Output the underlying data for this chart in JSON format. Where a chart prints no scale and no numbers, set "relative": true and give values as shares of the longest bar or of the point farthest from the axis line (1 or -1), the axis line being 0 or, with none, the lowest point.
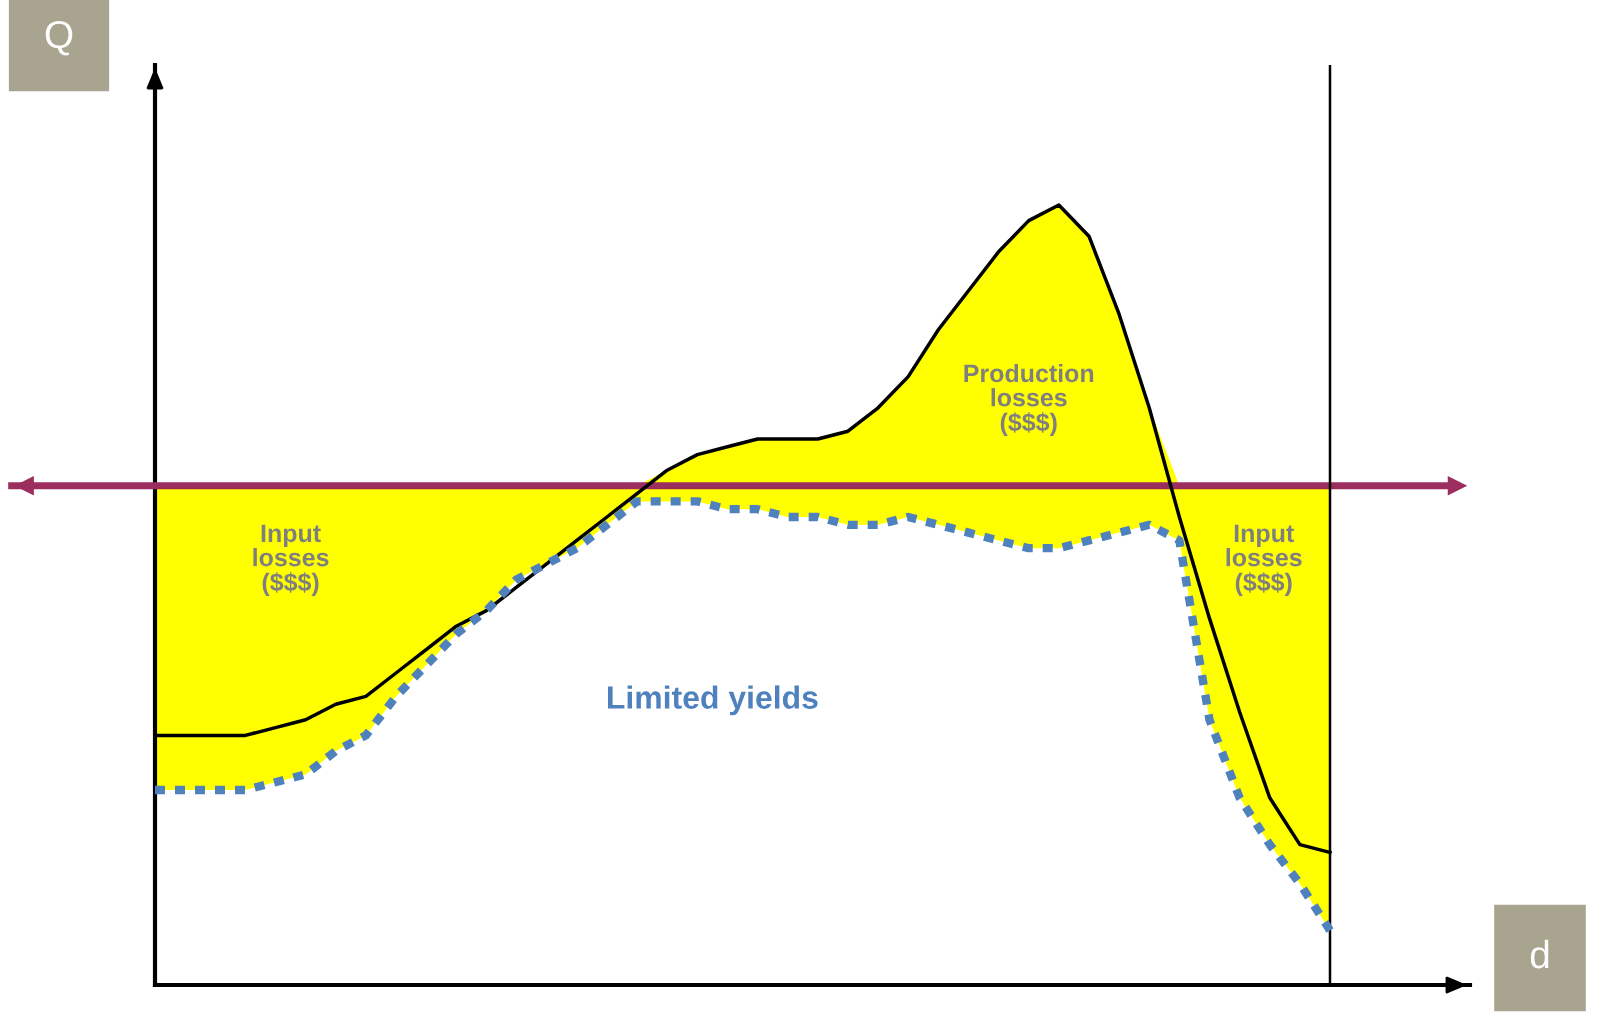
{
  "chart_data": {
    "type": "line",
    "relative": true,
    "xlabel": "d",
    "ylabel": "Q",
    "grid": false,
    "legend": false,
    "marker": "none",
    "categories": [
      null,
      null,
      null,
      null,
      null,
      null,
      null,
      null,
      null,
      null,
      null,
      null,
      null,
      null,
      null,
      null,
      null,
      null,
      null,
      null,
      null,
      null,
      null,
      null,
      null,
      null,
      null,
      null,
      null,
      null,
      null,
      null,
      null,
      null,
      null,
      null,
      null,
      null,
      null,
      null
    ],
    "series": [
      {
        "color": "#000000",
        "line_style": "solid",
        "values": [
          0.32,
          0.32,
          0.32,
          0.32,
          0.33,
          0.34,
          0.36,
          0.37,
          0.4,
          0.43,
          0.46,
          0.48,
          0.51,
          0.54,
          0.57,
          0.6,
          0.63,
          0.66,
          0.68,
          0.69,
          0.7,
          0.7,
          0.7,
          0.71,
          0.74,
          0.78,
          0.84,
          0.89,
          0.94,
          0.98,
          1.0,
          0.96,
          0.86,
          0.74,
          0.6,
          0.47,
          0.35,
          0.24,
          0.18,
          0.17
        ]
      },
      {
        "color": "#4f81bd",
        "line_style": "dotted",
        "values": [
          0.25,
          0.25,
          0.25,
          0.25,
          0.26,
          0.27,
          0.3,
          0.32,
          0.37,
          0.41,
          0.45,
          0.48,
          0.52,
          0.54,
          0.56,
          0.59,
          0.62,
          0.62,
          0.62,
          0.61,
          0.61,
          0.6,
          0.6,
          0.59,
          0.59,
          0.6,
          0.59,
          0.58,
          0.57,
          0.56,
          0.56,
          0.57,
          0.58,
          0.59,
          0.57,
          0.34,
          0.24,
          0.18,
          0.13,
          0.07
        ],
        "lower": [
          0.25,
          0.25,
          0.25,
          0.25,
          0.26,
          0.27,
          0.3,
          0.32,
          0.37,
          0.41,
          0.45,
          0.48,
          0.52,
          0.54,
          0.56,
          0.59,
          0.62,
          0.62,
          0.62,
          0.61,
          0.61,
          0.6,
          0.6,
          0.59,
          0.59,
          0.6,
          0.59,
          0.58,
          0.57,
          0.56,
          0.56,
          0.57,
          0.58,
          0.59,
          0.57,
          0.34,
          0.24,
          0.18,
          0.13,
          0.07
        ],
        "upper": [
          0.64,
          0.64,
          0.64,
          0.64,
          0.64,
          0.64,
          0.64,
          0.64,
          0.64,
          0.64,
          0.64,
          0.64,
          0.64,
          0.64,
          0.64,
          0.64,
          0.64,
          0.66,
          0.68,
          0.69,
          0.7,
          0.7,
          0.7,
          0.71,
          0.74,
          0.78,
          0.84,
          0.89,
          0.94,
          0.98,
          1.0,
          0.96,
          0.86,
          0.74,
          0.64,
          0.64,
          0.64,
          0.64,
          0.64,
          0.64
        ]
      }
    ],
    "ref_lines": [
      {
        "axis": "y",
        "value": 0.64,
        "color": "#9b2d5f"
      }
    ],
    "annotations": [
      "Input\nlosses\n($$$)",
      "Production\nlosses\n($$$)",
      "Input\nlosses\n($$$)",
      "Limited yields"
    ]
  }
}
